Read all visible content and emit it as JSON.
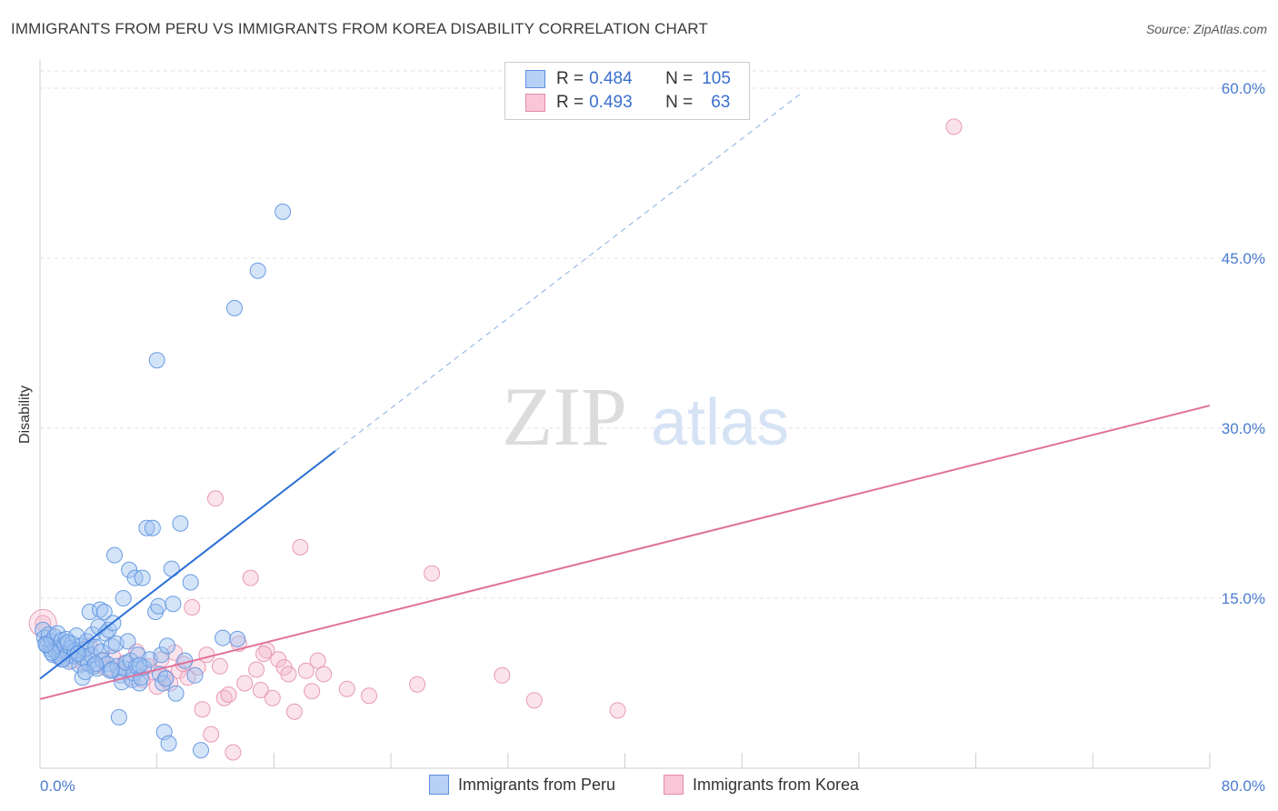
{
  "title": "IMMIGRANTS FROM PERU VS IMMIGRANTS FROM KOREA DISABILITY CORRELATION CHART",
  "source": "Source: ZipAtlas.com",
  "watermark": {
    "zip": "ZIP",
    "atlas": "atlas"
  },
  "legend": {
    "r_label": "R =",
    "n_label": "N =",
    "rows": [
      {
        "r": "0.484",
        "n": "105",
        "fill": "#b8d0f5",
        "stroke": "#5b8fe0"
      },
      {
        "r": "0.493",
        "n": "63",
        "fill": "#f8c6d6",
        "stroke": "#e58ab0"
      }
    ]
  },
  "colors": {
    "peru": "#2b6fd6",
    "korea": "#e0709a",
    "tick_label": "#4a7bd0"
  },
  "chart_data": {
    "type": "scatter",
    "title": "IMMIGRANTS FROM PERU VS IMMIGRANTS FROM KOREA DISABILITY CORRELATION CHART",
    "xlabel": "",
    "ylabel": "Disability",
    "xlim": [
      0,
      80
    ],
    "ylim": [
      0,
      60
    ],
    "x_tick_labels": [
      "0.0%",
      "80.0%"
    ],
    "y_ticks": [
      {
        "value": 15,
        "label": "15.0%"
      },
      {
        "value": 30,
        "label": "30.0%"
      },
      {
        "value": 45,
        "label": "45.0%"
      },
      {
        "value": 60,
        "label": "60.0%"
      }
    ],
    "grid": true,
    "legend_position": "bottom",
    "series": [
      {
        "name": "Immigrants from Peru",
        "color": "#2b6fd6",
        "points": [
          [
            0.2,
            12.2
          ],
          [
            0.3,
            11.5
          ],
          [
            0.4,
            11.0
          ],
          [
            0.5,
            10.8
          ],
          [
            0.6,
            11.8
          ],
          [
            0.7,
            10.5
          ],
          [
            0.8,
            11.2
          ],
          [
            0.9,
            10.0
          ],
          [
            1.0,
            11.6
          ],
          [
            1.1,
            10.3
          ],
          [
            1.2,
            11.9
          ],
          [
            1.3,
            9.8
          ],
          [
            1.4,
            10.7
          ],
          [
            1.5,
            11.3
          ],
          [
            1.6,
            9.6
          ],
          [
            1.7,
            10.9
          ],
          [
            1.8,
            11.4
          ],
          [
            1.9,
            10.1
          ],
          [
            2.0,
            9.4
          ],
          [
            2.1,
            10.6
          ],
          [
            2.2,
            11.0
          ],
          [
            2.3,
            9.9
          ],
          [
            2.4,
            10.4
          ],
          [
            2.5,
            11.7
          ],
          [
            2.6,
            10.2
          ],
          [
            2.7,
            9.1
          ],
          [
            2.8,
            10.8
          ],
          [
            2.9,
            8.0
          ],
          [
            3.0,
            9.7
          ],
          [
            3.1,
            10.5
          ],
          [
            3.2,
            11.2
          ],
          [
            3.3,
            9.3
          ],
          [
            3.4,
            13.8
          ],
          [
            3.5,
            10.0
          ],
          [
            3.6,
            11.8
          ],
          [
            3.7,
            9.0
          ],
          [
            3.8,
            10.7
          ],
          [
            3.9,
            8.8
          ],
          [
            4.0,
            12.5
          ],
          [
            4.1,
            14.0
          ],
          [
            4.2,
            10.3
          ],
          [
            4.3,
            9.5
          ],
          [
            4.4,
            13.8
          ],
          [
            4.5,
            11.9
          ],
          [
            4.6,
            9.2
          ],
          [
            4.7,
            12.2
          ],
          [
            4.8,
            8.6
          ],
          [
            4.9,
            10.8
          ],
          [
            5.0,
            12.8
          ],
          [
            5.1,
            18.8
          ],
          [
            5.2,
            11.0
          ],
          [
            5.3,
            9.0
          ],
          [
            5.4,
            4.5
          ],
          [
            5.5,
            8.2
          ],
          [
            5.6,
            7.6
          ],
          [
            5.7,
            15.0
          ],
          [
            5.8,
            8.8
          ],
          [
            5.9,
            9.3
          ],
          [
            6.0,
            11.2
          ],
          [
            6.1,
            17.5
          ],
          [
            6.2,
            9.5
          ],
          [
            6.3,
            7.8
          ],
          [
            6.4,
            8.4
          ],
          [
            6.5,
            16.8
          ],
          [
            6.6,
            9.0
          ],
          [
            6.7,
            10.0
          ],
          [
            6.8,
            7.5
          ],
          [
            6.9,
            8.0
          ],
          [
            7.0,
            16.8
          ],
          [
            7.1,
            8.9
          ],
          [
            7.3,
            21.2
          ],
          [
            7.5,
            9.6
          ],
          [
            7.7,
            21.2
          ],
          [
            7.9,
            13.8
          ],
          [
            8.0,
            36.0
          ],
          [
            8.1,
            14.3
          ],
          [
            8.2,
            8.3
          ],
          [
            8.3,
            10.0
          ],
          [
            8.4,
            7.5
          ],
          [
            8.5,
            3.2
          ],
          [
            8.6,
            7.9
          ],
          [
            8.7,
            10.8
          ],
          [
            8.8,
            2.2
          ],
          [
            9.0,
            17.6
          ],
          [
            9.1,
            14.5
          ],
          [
            9.3,
            6.6
          ],
          [
            9.6,
            21.6
          ],
          [
            9.9,
            9.5
          ],
          [
            10.3,
            16.4
          ],
          [
            10.6,
            8.2
          ],
          [
            11.0,
            1.6
          ],
          [
            12.5,
            11.5
          ],
          [
            13.3,
            40.6
          ],
          [
            13.5,
            11.4
          ],
          [
            14.9,
            43.9
          ],
          [
            16.6,
            49.1
          ],
          [
            1.5,
            9.6
          ],
          [
            2.6,
            10.1
          ],
          [
            3.8,
            9.2
          ],
          [
            4.9,
            8.7
          ],
          [
            0.8,
            10.2
          ],
          [
            1.9,
            11.1
          ],
          [
            3.1,
            8.5
          ],
          [
            6.8,
            9.1
          ],
          [
            0.4,
            10.9
          ]
        ]
      },
      {
        "name": "Immigrants from Korea",
        "color": "#e0709a",
        "points": [
          [
            0.2,
            12.8
          ],
          [
            0.6,
            11.0
          ],
          [
            1.0,
            10.5
          ],
          [
            1.4,
            9.8
          ],
          [
            1.8,
            10.2
          ],
          [
            2.2,
            9.5
          ],
          [
            2.6,
            10.0
          ],
          [
            3.0,
            9.2
          ],
          [
            3.4,
            10.8
          ],
          [
            3.8,
            9.0
          ],
          [
            4.2,
            9.6
          ],
          [
            4.6,
            8.8
          ],
          [
            5.0,
            9.8
          ],
          [
            5.4,
            8.5
          ],
          [
            5.8,
            9.3
          ],
          [
            6.2,
            8.0
          ],
          [
            6.6,
            10.3
          ],
          [
            7.0,
            7.8
          ],
          [
            7.4,
            9.0
          ],
          [
            7.7,
            8.5
          ],
          [
            8.0,
            7.2
          ],
          [
            8.3,
            9.6
          ],
          [
            8.6,
            8.0
          ],
          [
            8.9,
            7.5
          ],
          [
            9.2,
            10.2
          ],
          [
            9.5,
            8.6
          ],
          [
            9.8,
            9.2
          ],
          [
            10.1,
            8.0
          ],
          [
            10.4,
            14.2
          ],
          [
            10.8,
            8.9
          ],
          [
            11.1,
            5.2
          ],
          [
            11.4,
            10.0
          ],
          [
            11.7,
            3.0
          ],
          [
            12.0,
            23.8
          ],
          [
            12.3,
            9.0
          ],
          [
            12.6,
            6.2
          ],
          [
            12.9,
            6.5
          ],
          [
            13.2,
            1.4
          ],
          [
            13.6,
            11.0
          ],
          [
            14.0,
            7.5
          ],
          [
            14.4,
            16.8
          ],
          [
            14.8,
            8.7
          ],
          [
            15.1,
            6.9
          ],
          [
            15.5,
            10.4
          ],
          [
            15.9,
            6.2
          ],
          [
            16.3,
            9.6
          ],
          [
            16.7,
            8.9
          ],
          [
            17.0,
            8.3
          ],
          [
            17.4,
            5.0
          ],
          [
            17.8,
            19.5
          ],
          [
            18.2,
            8.6
          ],
          [
            18.6,
            6.8
          ],
          [
            19.0,
            9.5
          ],
          [
            19.4,
            8.3
          ],
          [
            25.8,
            7.4
          ],
          [
            26.8,
            17.2
          ],
          [
            31.6,
            8.2
          ],
          [
            33.8,
            6.0
          ],
          [
            39.5,
            5.1
          ],
          [
            62.5,
            56.6
          ],
          [
            21.0,
            7.0
          ],
          [
            22.5,
            6.4
          ],
          [
            15.3,
            10.1
          ]
        ]
      }
    ],
    "trendlines": [
      {
        "series": "Immigrants from Peru",
        "x0": 0,
        "y0": 7.9,
        "x1": 20.2,
        "y1": 28.0,
        "extends_dashed_to": [
          52.0,
          59.5
        ]
      },
      {
        "series": "Immigrants from Korea",
        "x0": 0,
        "y0": 6.1,
        "x1": 80,
        "y1": 32.0
      }
    ]
  }
}
